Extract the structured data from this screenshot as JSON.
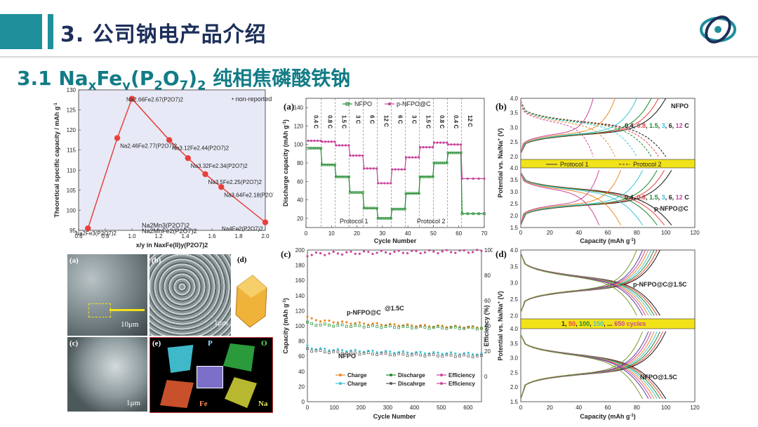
{
  "slide": {
    "title": "3. 公司钠电产品介绍",
    "subtitle_prefix": "3.1 Na",
    "subtitle_x": "x",
    "subtitle_fe": "Fe",
    "subtitle_y": "y",
    "subtitle_p2o7": "(P",
    "subtitle_2a": "2",
    "subtitle_o": "O",
    "subtitle_7": "7",
    "subtitle_close": ")",
    "subtitle_2b": "2",
    "subtitle_rest": " 纯相焦磷酸铁钠"
  },
  "colors": {
    "accent": "#1f8f9b",
    "title": "#1c2f5a",
    "subtitle": "#127c86",
    "red_curve": "#e8413d",
    "green": "#1e8a2c",
    "pink": "#c9449a",
    "orange": "#e98a2a",
    "cyan": "#3fc3d6",
    "yellow_band": "#f2e21a"
  },
  "chart_data": [
    {
      "type": "scatter",
      "ylabel": "Theoretical specific capacity / mAh g",
      "ylabel_sup": "-1",
      "xlabel": "x/y in NaxFe(II)y(P2O7)2",
      "ylim": [
        95,
        130
      ],
      "xlim": [
        0.6,
        2.0
      ],
      "x_ticks": [
        "0.6",
        "0.8",
        "1.0",
        "1.2",
        "1.4",
        "1.6",
        "1.8",
        "2.0"
      ],
      "y_ticks": [
        "95",
        "100",
        "105",
        "110",
        "115",
        "120",
        "125",
        "130"
      ],
      "legend": "non-reported",
      "points": [
        {
          "x": 0.67,
          "y": 95.5,
          "label": "Na2Fe3(P2O7)2"
        },
        {
          "x": 0.89,
          "y": 118,
          "label": "Na2.46Fe2.77(P2O7)2"
        },
        {
          "x": 1.0,
          "y": 127.8,
          "label": "Na2.66Fe2.67(P2O7)2"
        },
        {
          "x": 1.28,
          "y": 117.5,
          "label": "Na3.12Fe2.44(P2O7)2"
        },
        {
          "x": 1.42,
          "y": 113,
          "label": "Na3.32Fe2.34(P2O7)2"
        },
        {
          "x": 1.55,
          "y": 109,
          "label": "Na3.5Fe2.25(P2O7)2"
        },
        {
          "x": 1.67,
          "y": 105.8,
          "label": "Na3.64Fe2.18(P2O7)2"
        },
        {
          "x": 2.0,
          "y": 97,
          "label": "Na4Fe2(P2O7)2"
        }
      ],
      "extra_labels": [
        "Na2Mn3(P2O7)2",
        "Na2MnFe2(P2O7)2"
      ]
    },
    {
      "type": "scatter",
      "panel": "(a)",
      "xlabel": "Cycle Number",
      "ylabel": "Discharge capacity (mAh g",
      "ylabel_sup": "-1",
      "xlim": [
        0,
        70
      ],
      "ylim": [
        10,
        150
      ],
      "x_ticks": [
        "0",
        "10",
        "20",
        "30",
        "40",
        "50",
        "60",
        "70"
      ],
      "y_ticks": [
        "20",
        "40",
        "60",
        "80",
        "100",
        "120",
        "140"
      ],
      "rates": [
        "0.4 C",
        "0.8 C",
        "1.5 C",
        "3 C",
        "6 C",
        "12 C",
        "6 C",
        "3 C",
        "1.5 C",
        "0.8 C",
        "0.4 C",
        "12 C"
      ],
      "protocols": [
        "Protocol 1",
        "Protocol 2"
      ],
      "series": [
        {
          "name": "NFPO",
          "values": [
            96,
            78,
            65,
            48,
            31,
            20,
            30,
            47,
            65,
            80,
            91,
            25
          ]
        },
        {
          "name": "p-NFPO@C",
          "values": [
            104,
            103,
            99,
            88,
            74,
            58,
            73,
            86,
            97,
            102,
            100,
            63
          ]
        }
      ]
    },
    {
      "type": "line",
      "panel": "(b)",
      "xlabel": "Capacity (mAh g",
      "xlabel_sup": "-1",
      "ylabel": "Potential vs. Na/Na",
      "ylabel_sup": "+",
      "ylabel_unit": "(V)",
      "xlim": [
        0,
        120
      ],
      "x_ticks": [
        "0",
        "20",
        "40",
        "60",
        "80",
        "100",
        "120"
      ],
      "y_ticks_top": [
        "2.0",
        "2.5",
        "3.0",
        "3.5",
        "4.0"
      ],
      "y_ticks_bottom": [
        "1.5",
        "2.0",
        "2.5",
        "3.0",
        "3.5",
        "4.0"
      ],
      "material_top": "NFPO",
      "material_bottom": "p-NFPO@C",
      "rate_values": [
        "0.4",
        "0.8",
        "1.5",
        "3",
        "6",
        "12"
      ],
      "rate_unit": "C",
      "protocol_1": "Protocol 1",
      "protocol_2": "Protocol 2"
    },
    {
      "type": "scatter",
      "panel": "(c)",
      "xlabel": "Cycle Number",
      "ylabel": "Capacity (mAh g",
      "ylabel_sup": "-1",
      "ylabel_right": "Efficiency (%)",
      "xlim": [
        0,
        650
      ],
      "ylim": [
        0,
        200
      ],
      "x_ticks": [
        "0",
        "100",
        "200",
        "300",
        "400",
        "500",
        "600"
      ],
      "y_ticks": [
        "0",
        "20",
        "40",
        "60",
        "80",
        "100",
        "120",
        "140",
        "160",
        "180",
        "200"
      ],
      "y2_ticks": [
        "0",
        "20",
        "40",
        "60",
        "80",
        "100"
      ],
      "rate_label": "@1.5C",
      "material_labels": [
        "p-NFPO@C",
        "NFPO"
      ],
      "legend": [
        {
          "name": "Charge",
          "color": "#e98a2a"
        },
        {
          "name": "Discharge",
          "color": "#1e8a2c"
        },
        {
          "name": "Efficiency",
          "color": "#c9449a"
        },
        {
          "name": "Charge",
          "color": "#3fc3d6"
        },
        {
          "name": "Discahrge",
          "color": "#555555"
        },
        {
          "name": "Efficiency",
          "color": "#c9449a"
        }
      ],
      "series": [
        {
          "name": "p-NFPO@C charge",
          "start": 112,
          "end": 98
        },
        {
          "name": "p-NFPO@C discharge",
          "start": 104,
          "end": 97
        },
        {
          "name": "NFPO charge",
          "start": 73,
          "end": 63
        },
        {
          "name": "NFPO discharge",
          "start": 70,
          "end": 60
        },
        {
          "name": "Efficiency",
          "start": 96,
          "end": 99
        }
      ]
    },
    {
      "type": "line",
      "panel": "(d)",
      "xlabel": "Capacity (mAh g",
      "xlabel_sup": "-1",
      "ylabel": "Potential vs. Na/Na",
      "ylabel_sup": "+",
      "ylabel_unit": "(V)",
      "xlim": [
        0,
        120
      ],
      "x_ticks": [
        "0",
        "20",
        "40",
        "60",
        "80",
        "100",
        "120"
      ],
      "y_ticks_top": [
        "2.0",
        "2.5",
        "3.0",
        "3.5",
        "4.0"
      ],
      "y_ticks_bottom": [
        "1.5",
        "2.0",
        "2.5",
        "3.0",
        "3.5",
        "4.0"
      ],
      "material_top": "p-NFPO@C@1.5C",
      "material_bottom": "NFPO@1.5C",
      "cycle_labels": [
        "1",
        "50",
        "100",
        "150",
        "...",
        "650 cycles"
      ],
      "cycle_label_seps": [
        ", ",
        ", ",
        ", ",
        ", ",
        " "
      ]
    }
  ],
  "micrographs": {
    "labels": [
      "(a)",
      "(b)",
      "(c)",
      "(d)",
      "(e)"
    ],
    "scales": [
      "10μm",
      "1μm",
      "1μm"
    ],
    "elements": [
      "P",
      "O",
      "Fe",
      "Na"
    ]
  }
}
